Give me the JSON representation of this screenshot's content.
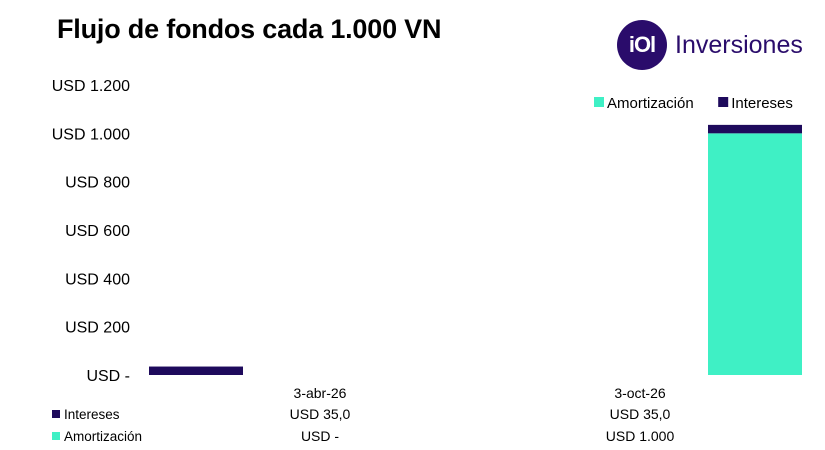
{
  "title": "Flujo de fondos cada 1.000 VN",
  "brand": {
    "logo_text": "iOl",
    "name": "Inversiones"
  },
  "colors": {
    "intereses": "#1e0a5c",
    "amortizacion": "#3ff0c5"
  },
  "chart_data": {
    "type": "bar",
    "stacked": true,
    "categories": [
      "3-abr-26",
      "3-oct-26"
    ],
    "series": [
      {
        "name": "Amortización",
        "values": [
          0,
          1000
        ],
        "table_values": [
          "USD -",
          "USD 1.000"
        ]
      },
      {
        "name": "Intereses",
        "values": [
          35,
          35
        ],
        "table_values": [
          "USD 35,0",
          "USD 35,0"
        ]
      }
    ],
    "y_ticks": [
      {
        "value": 0,
        "label": "USD -"
      },
      {
        "value": 200,
        "label": "USD 200"
      },
      {
        "value": 400,
        "label": "USD 400"
      },
      {
        "value": 600,
        "label": "USD 600"
      },
      {
        "value": 800,
        "label": "USD 800"
      },
      {
        "value": 1000,
        "label": "USD 1.000"
      },
      {
        "value": 1200,
        "label": "USD 1.200"
      }
    ],
    "ylim": [
      0,
      1200
    ],
    "legend_position": "top-right",
    "grid": false,
    "data_table": [
      {
        "series": "Intereses",
        "values": [
          "USD 35,0",
          "USD 35,0"
        ]
      },
      {
        "series": "Amortización",
        "values": [
          "USD -",
          "USD 1.000"
        ]
      }
    ]
  }
}
